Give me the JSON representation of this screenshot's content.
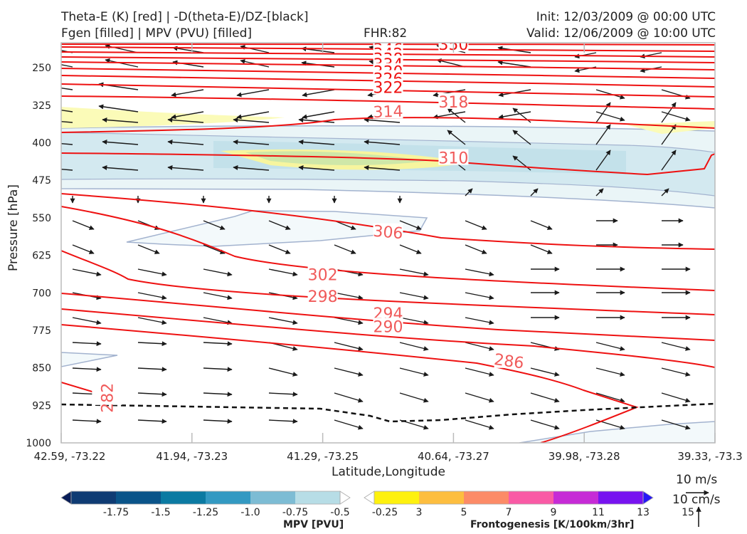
{
  "header": {
    "title_left_1": "Theta-E (K) [red] | -D(theta-E)/DZ-[black]",
    "title_left_2": "Fgen [filled] | MPV (PVU) [filled]",
    "fhr": "FHR:82",
    "init": "Init: 12/03/2009 @ 00:00 UTC",
    "valid": "Valid: 12/06/2009 @ 10:00 UTC"
  },
  "chart_data": {
    "type": "cross-section",
    "xlabel": "Latitude,Longitude",
    "ylabel": "Pressure [hPa]",
    "x_ticks": [
      "42.59, -73.22",
      "41.94, -73.23",
      "41.29, -73.25",
      "40.64, -73.27",
      "39.98, -73.28",
      "39.33, -73.3"
    ],
    "y_ticks": [
      250,
      325,
      400,
      475,
      550,
      625,
      700,
      775,
      850,
      925,
      1000
    ],
    "ylim": [
      1000,
      200
    ],
    "y_reversed": true,
    "grid": false,
    "theta_e_labels": [
      {
        "value": "350",
        "x": 0.6,
        "p": 203
      },
      {
        "value": "346",
        "x": 0.5,
        "p": 213
      },
      {
        "value": "342",
        "x": 0.5,
        "p": 222
      },
      {
        "value": "338",
        "x": 0.5,
        "p": 232
      },
      {
        "value": "334",
        "x": 0.5,
        "p": 243
      },
      {
        "value": "330",
        "x": 0.5,
        "p": 258
      },
      {
        "value": "326",
        "x": 0.5,
        "p": 272
      },
      {
        "value": "322",
        "x": 0.5,
        "p": 289
      },
      {
        "value": "318",
        "x": 0.6,
        "p": 318
      },
      {
        "value": "314",
        "x": 0.5,
        "p": 337
      },
      {
        "value": "310",
        "x": 0.6,
        "p": 430
      },
      {
        "value": "306",
        "x": 0.5,
        "p": 578
      },
      {
        "value": "302",
        "x": 0.4,
        "p": 663
      },
      {
        "value": "298",
        "x": 0.4,
        "p": 707
      },
      {
        "value": "294",
        "x": 0.5,
        "p": 741
      },
      {
        "value": "290",
        "x": 0.5,
        "p": 767
      },
      {
        "value": "286",
        "x": 0.685,
        "p": 836
      },
      {
        "value": "282",
        "x": 0.07,
        "p": 910
      }
    ],
    "mpv_colorbar": {
      "title": "MPV [PVU]",
      "ticks": [
        "-1.75",
        "-1.5",
        "-1.25",
        "-1.0",
        "-0.75",
        "-0.5",
        "-0.25"
      ],
      "colors": [
        "#081d58",
        "#0f3b73",
        "#0a5489",
        "#0b7aa2",
        "#3399c2",
        "#7dbcd4",
        "#b7dde6",
        "#ffffff"
      ]
    },
    "fgen_colorbar": {
      "title": "Frontogenesis [K/100km/3hr]",
      "ticks": [
        "3",
        "5",
        "7",
        "9",
        "11",
        "13",
        "15"
      ],
      "colors": [
        "#ffffff",
        "#fef10e",
        "#fdbe3f",
        "#fc8b67",
        "#f95aa5",
        "#c62bd6",
        "#7713f0",
        "#2717f6"
      ]
    },
    "reference_vectors": {
      "h": "10 m/s",
      "v": "10 cm/s"
    }
  }
}
